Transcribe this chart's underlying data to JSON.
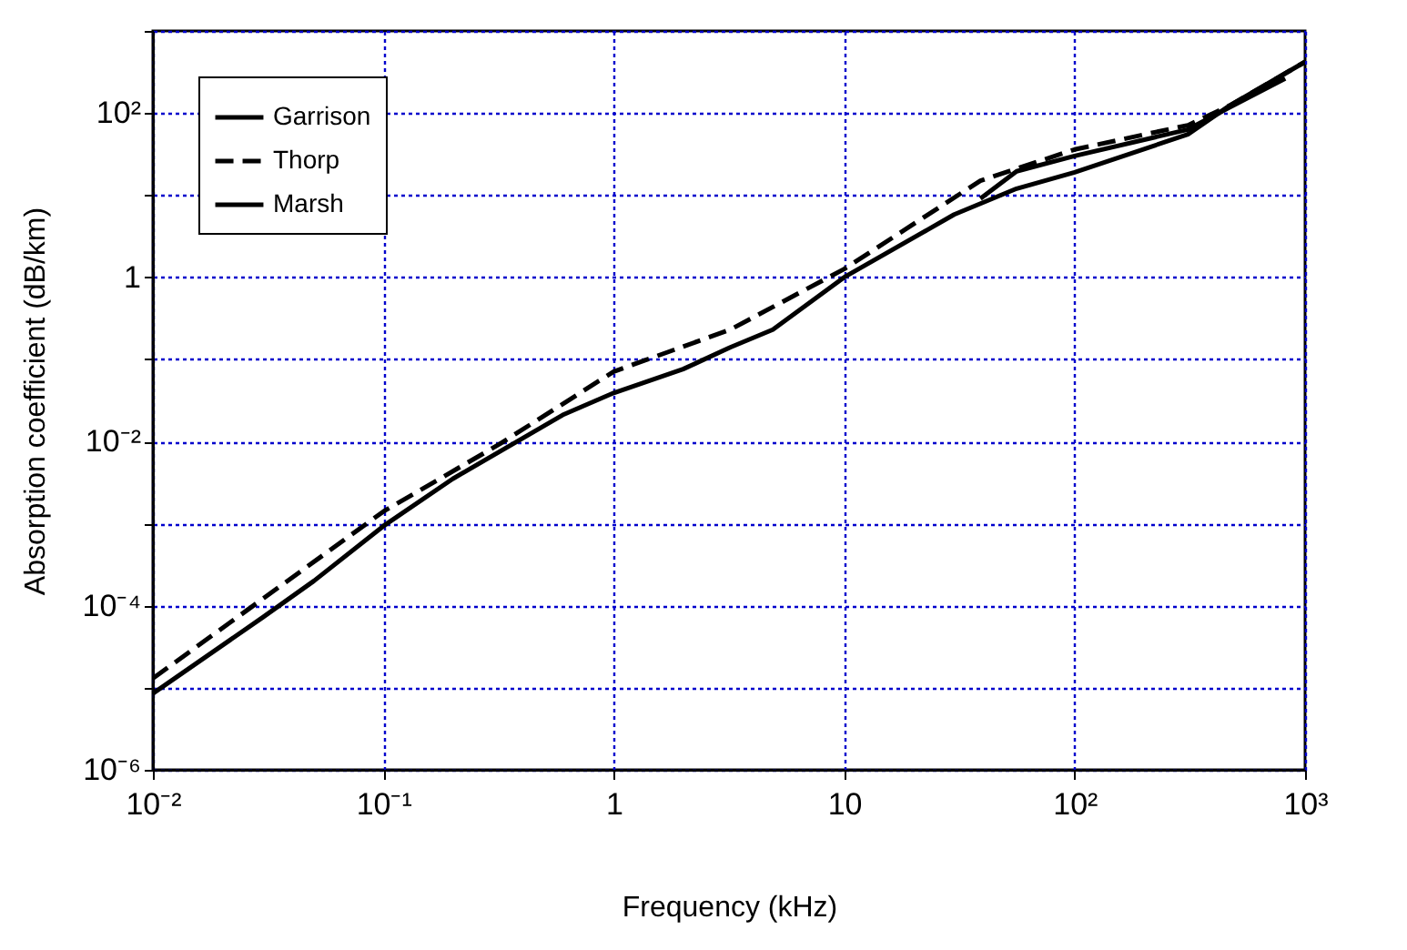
{
  "chart_data": {
    "type": "line",
    "xlabel": "Frequency   (kHz)",
    "ylabel": "Absorption coefficient   (dB/km)",
    "log": "xy",
    "grid": true,
    "legend": "top left",
    "marker": "none",
    "xlim": [
      0.01,
      1000
    ],
    "ylim": [
      1e-06,
      1000
    ],
    "xticks": [
      {
        "value": 0.01,
        "label": "10⁻²"
      },
      {
        "value": 0.1,
        "label": "10⁻¹"
      },
      1,
      10,
      {
        "value": 100,
        "label": "10²"
      },
      {
        "value": 1000,
        "label": "10³"
      }
    ],
    "yticks": [
      {
        "value": 1e-06,
        "label": "10⁻⁶"
      },
      {
        "value": 1e-05,
        "label": null
      },
      {
        "value": 0.0001,
        "label": "10⁻⁴"
      },
      {
        "value": 0.001,
        "label": null
      },
      {
        "value": 0.01,
        "label": "10⁻²"
      },
      {
        "value": 0.1,
        "label": null
      },
      1,
      {
        "value": 10,
        "label": null
      },
      {
        "value": 100,
        "label": "10²"
      },
      {
        "value": 1000,
        "label": null
      }
    ],
    "series": [
      {
        "name": "Garrison",
        "color": "#000000",
        "line_style": "solid",
        "x": [
          0.01,
          0.03,
          0.05,
          0.1,
          0.2,
          0.6,
          1,
          2,
          3.2,
          4.9,
          10,
          30,
          56,
          100,
          310,
          470,
          1000
        ],
        "values": [
          8.5e-06,
          7.2e-05,
          0.0002,
          0.00093,
          0.0035,
          0.021,
          0.039,
          0.076,
          0.14,
          0.23,
          1.0,
          5.8,
          12,
          19,
          55,
          123,
          420
        ]
      },
      {
        "name": "Thorp",
        "color": "#000000",
        "line_style": "dashed",
        "x": [
          0.01,
          0.1,
          0.32,
          1,
          3.2,
          10,
          39,
          100,
          310,
          470,
          1000
        ],
        "values": [
          1.3e-05,
          0.0014,
          0.0093,
          0.071,
          0.23,
          1.26,
          15,
          36,
          71,
          123,
          420
        ]
      },
      {
        "name": "Marsh",
        "color": "#000000",
        "line_style": "solid",
        "x": [
          39,
          56,
          100,
          310,
          470,
          820
        ],
        "values": [
          9.1,
          19.5,
          30,
          63,
          117,
          263
        ]
      }
    ]
  }
}
